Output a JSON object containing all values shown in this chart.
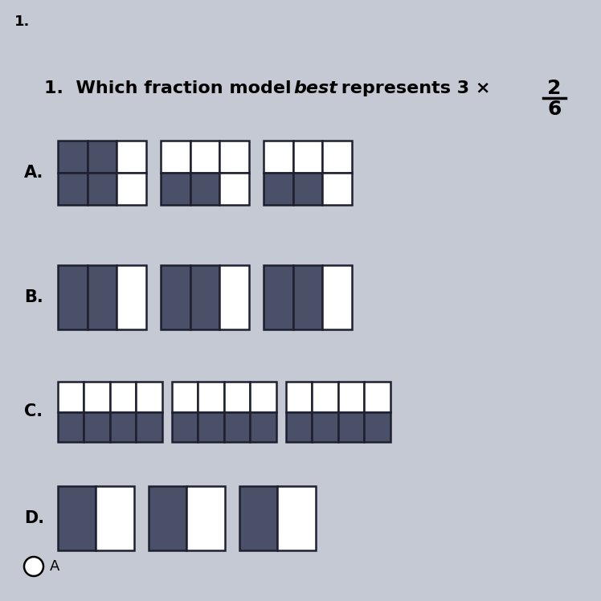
{
  "bg_color": "#c5c9d4",
  "dark_color": "#4a5068",
  "light_color": "#ffffff",
  "border_color": "#1e2030",
  "title": "1.",
  "question_parts": [
    "1.  Which fraction model ",
    "best",
    " represents 3 ×"
  ],
  "frac_num": "2",
  "frac_den": "6",
  "options": [
    {
      "label": "A.",
      "grid_cols": 3,
      "grid_rows": 2,
      "grids_shaded": [
        [
          [
            0,
            1
          ],
          [
            1,
            1
          ],
          [
            0,
            0
          ],
          [
            1,
            0
          ]
        ],
        [
          [
            0,
            1
          ],
          [
            1,
            1
          ]
        ],
        [
          [
            0,
            1
          ],
          [
            1,
            1
          ]
        ]
      ]
    },
    {
      "label": "B.",
      "grid_cols": 3,
      "grid_rows": 1,
      "grids_shaded": [
        [
          [
            0,
            0
          ],
          [
            1,
            0
          ]
        ],
        [
          [
            0,
            0
          ],
          [
            1,
            0
          ]
        ],
        [
          [
            0,
            0
          ],
          [
            1,
            0
          ]
        ]
      ]
    },
    {
      "label": "C.",
      "grid_cols": 4,
      "grid_rows": 2,
      "grids_shaded": [
        [
          [
            0,
            1
          ],
          [
            1,
            1
          ],
          [
            2,
            1
          ],
          [
            3,
            1
          ]
        ],
        [
          [
            0,
            1
          ],
          [
            1,
            1
          ],
          [
            2,
            1
          ],
          [
            3,
            1
          ]
        ],
        [
          [
            0,
            1
          ],
          [
            1,
            1
          ],
          [
            2,
            1
          ],
          [
            3,
            1
          ]
        ]
      ]
    },
    {
      "label": "D.",
      "grid_cols": 2,
      "grid_rows": 1,
      "grids_shaded": [
        [
          [
            0,
            0
          ]
        ],
        [
          [
            0,
            0
          ]
        ],
        [
          [
            0,
            0
          ]
        ]
      ]
    }
  ],
  "radio_answer": "A"
}
